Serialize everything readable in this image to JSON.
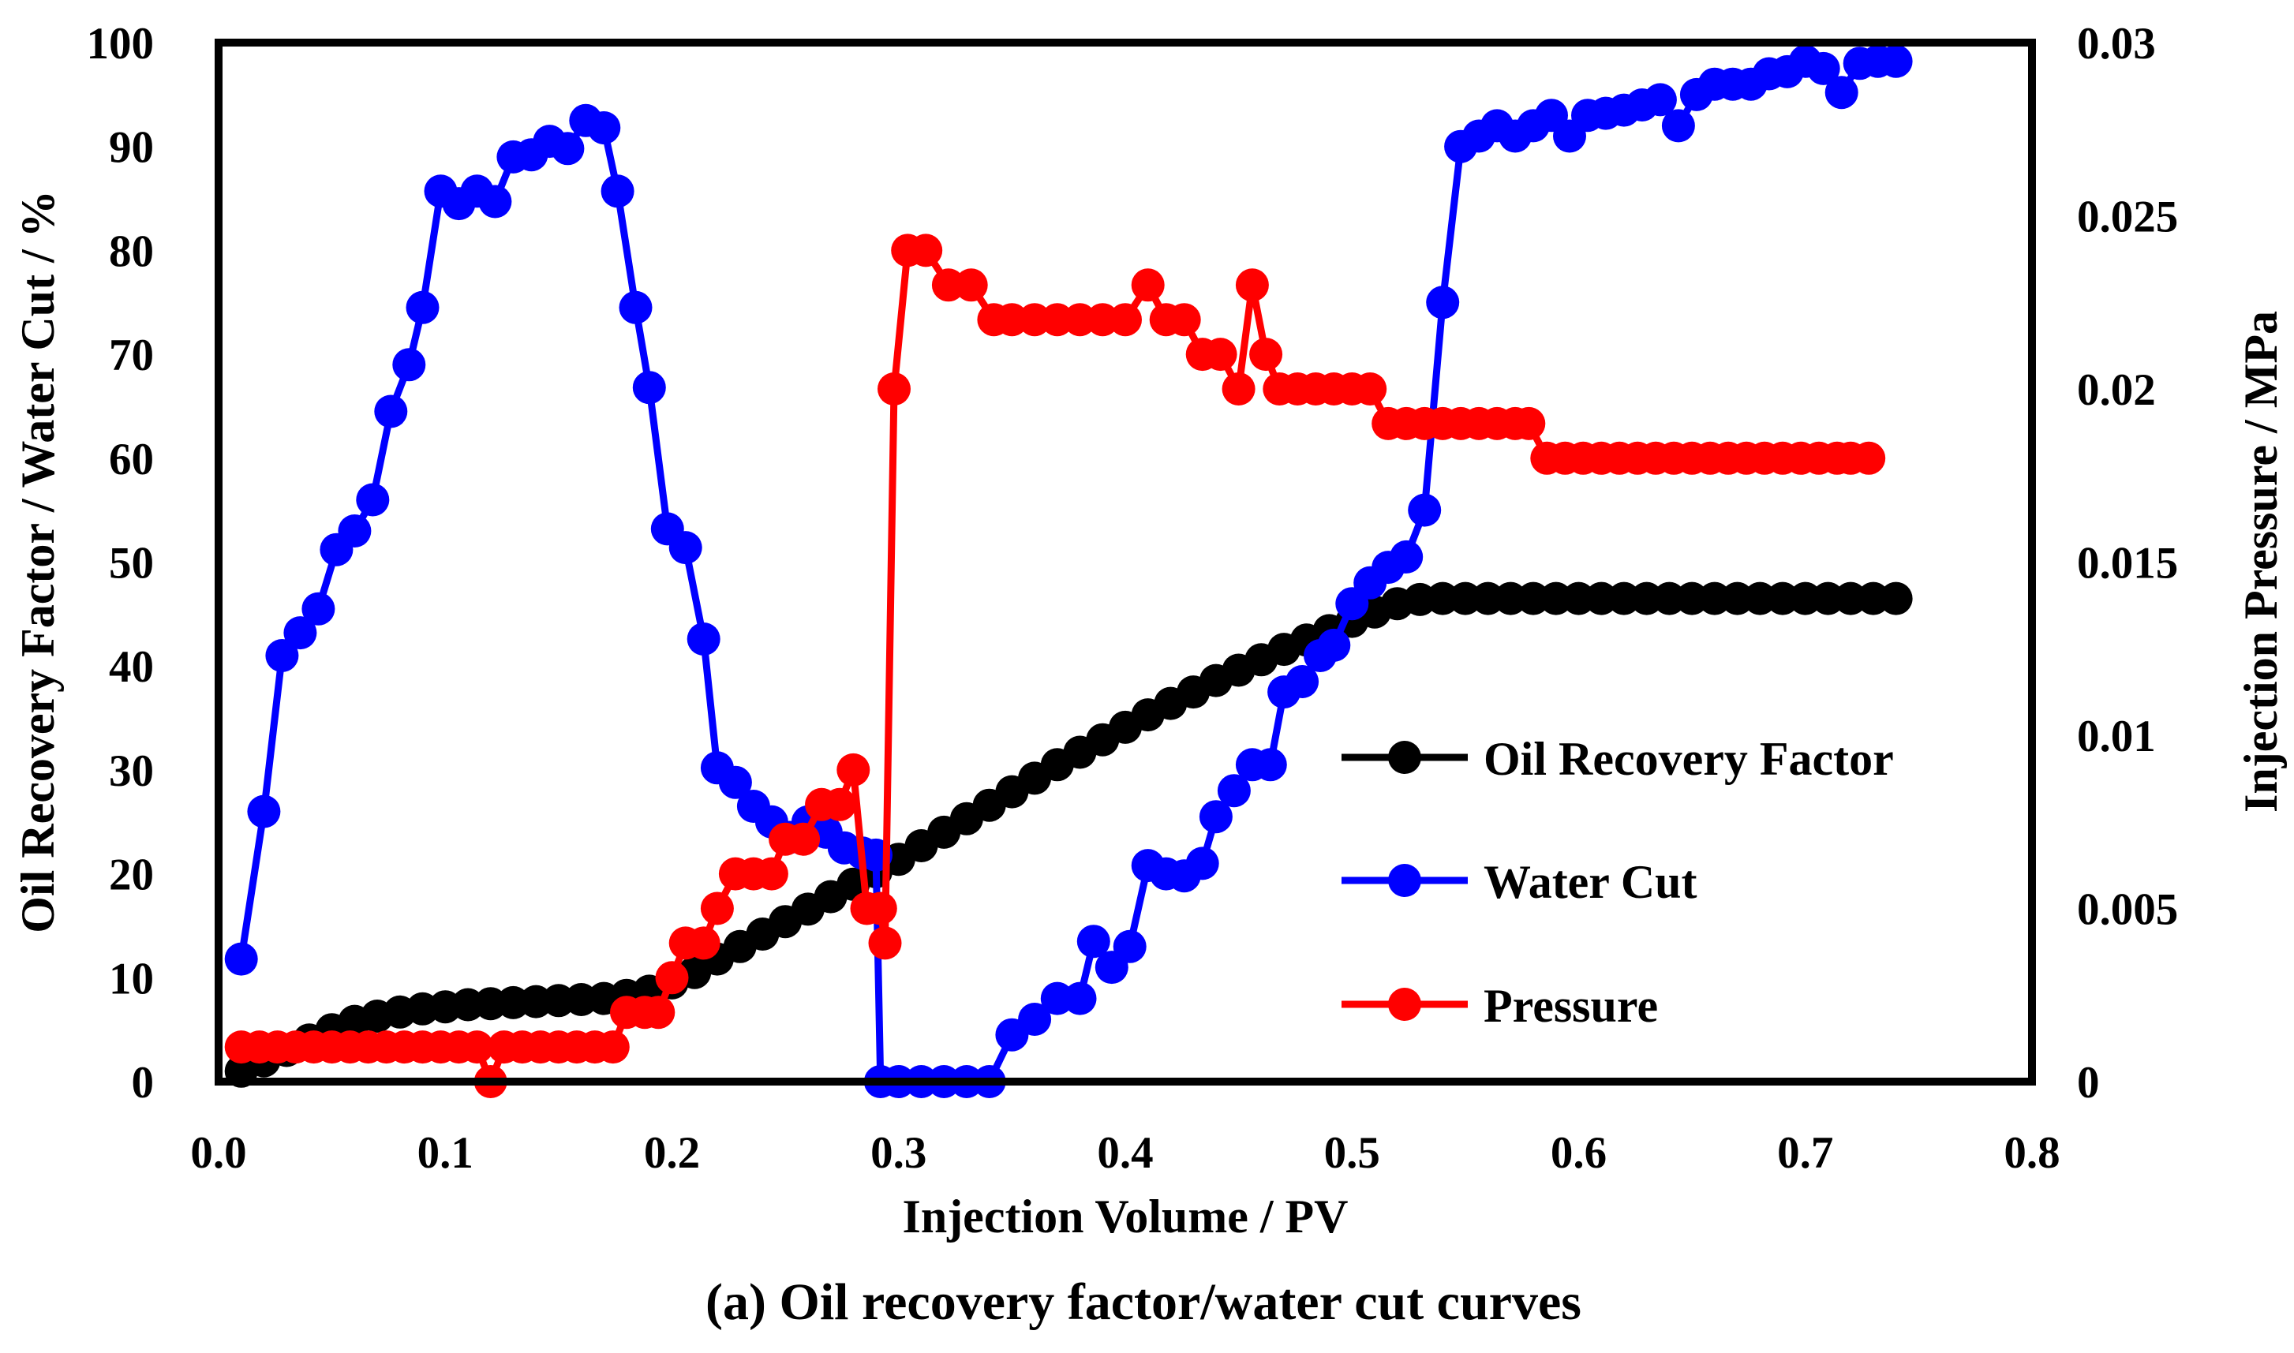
{
  "caption": "(a) Oil recovery factor/water cut curves",
  "chart_data": {
    "type": "line",
    "xlabel": "Injection Volume / PV",
    "ylabel_left": "Oil Recovery Factor / Water Cut / %",
    "ylabel_right": "Injection Pressure / MPa",
    "xlim": [
      0.0,
      0.8
    ],
    "ylim_left": [
      0,
      100
    ],
    "ylim_right": [
      0,
      0.03
    ],
    "x_ticks": [
      "0.0",
      "0.1",
      "0.2",
      "0.3",
      "0.4",
      "0.5",
      "0.6",
      "0.7",
      "0.8"
    ],
    "y_ticks_left": [
      "0",
      "10",
      "20",
      "30",
      "40",
      "50",
      "60",
      "70",
      "80",
      "90",
      "100"
    ],
    "y_ticks_right": [
      "0",
      "0.005",
      "0.01",
      "0.015",
      "0.02",
      "0.025",
      "0.03"
    ],
    "legend_position": "center-right",
    "grid": false,
    "series": [
      {
        "name": "Oil Recovery Factor",
        "axis": "left",
        "color": "#000000",
        "x": [
          0.01,
          0.02,
          0.03,
          0.04,
          0.05,
          0.06,
          0.07,
          0.08,
          0.09,
          0.1,
          0.11,
          0.12,
          0.13,
          0.14,
          0.15,
          0.16,
          0.17,
          0.18,
          0.19,
          0.2,
          0.21,
          0.22,
          0.23,
          0.24,
          0.25,
          0.26,
          0.27,
          0.28,
          0.29,
          0.3,
          0.31,
          0.32,
          0.33,
          0.34,
          0.35,
          0.36,
          0.37,
          0.38,
          0.39,
          0.4,
          0.41,
          0.42,
          0.43,
          0.44,
          0.45,
          0.46,
          0.47,
          0.48,
          0.49,
          0.5,
          0.51,
          0.52,
          0.53,
          0.54,
          0.55,
          0.56,
          0.57,
          0.58,
          0.59,
          0.6,
          0.61,
          0.62,
          0.63,
          0.64,
          0.65,
          0.66,
          0.67,
          0.68,
          0.69,
          0.7,
          0.71,
          0.72,
          0.73,
          0.74
        ],
        "y": [
          1.0,
          2.0,
          3.0,
          4.0,
          5.0,
          5.8,
          6.3,
          6.7,
          7.0,
          7.2,
          7.4,
          7.5,
          7.6,
          7.7,
          7.8,
          7.9,
          8.0,
          8.3,
          8.7,
          9.5,
          10.5,
          11.8,
          13.0,
          14.2,
          15.4,
          16.6,
          17.8,
          19.0,
          20.2,
          21.4,
          22.7,
          24.0,
          25.3,
          26.6,
          27.9,
          29.2,
          30.5,
          31.7,
          32.9,
          34.1,
          35.3,
          36.4,
          37.5,
          38.6,
          39.6,
          40.6,
          41.6,
          42.5,
          43.4,
          44.3,
          45.2,
          46.0,
          46.4,
          46.5,
          46.5,
          46.5,
          46.5,
          46.5,
          46.5,
          46.5,
          46.5,
          46.5,
          46.5,
          46.5,
          46.5,
          46.5,
          46.5,
          46.5,
          46.5,
          46.5,
          46.5,
          46.5,
          46.5,
          46.5
        ]
      },
      {
        "name": "Water Cut",
        "axis": "left",
        "color": "#0000ff",
        "x": [
          0.01,
          0.02,
          0.028,
          0.036,
          0.044,
          0.052,
          0.06,
          0.068,
          0.076,
          0.084,
          0.09,
          0.098,
          0.106,
          0.114,
          0.122,
          0.13,
          0.138,
          0.146,
          0.154,
          0.162,
          0.17,
          0.176,
          0.184,
          0.19,
          0.198,
          0.206,
          0.214,
          0.22,
          0.228,
          0.236,
          0.244,
          0.252,
          0.26,
          0.268,
          0.276,
          0.284,
          0.29,
          0.292,
          0.3,
          0.31,
          0.32,
          0.33,
          0.34,
          0.35,
          0.36,
          0.37,
          0.38,
          0.386,
          0.394,
          0.402,
          0.41,
          0.418,
          0.426,
          0.434,
          0.44,
          0.448,
          0.456,
          0.464,
          0.47,
          0.478,
          0.486,
          0.492,
          0.5,
          0.508,
          0.516,
          0.524,
          0.532,
          0.54,
          0.548,
          0.556,
          0.564,
          0.572,
          0.58,
          0.588,
          0.596,
          0.604,
          0.612,
          0.62,
          0.628,
          0.636,
          0.644,
          0.652,
          0.66,
          0.668,
          0.676,
          0.684,
          0.692,
          0.7,
          0.708,
          0.716,
          0.724,
          0.732,
          0.74
        ],
        "y": [
          11.8,
          26.0,
          41.0,
          43.2,
          45.5,
          51.2,
          53.0,
          56.0,
          64.5,
          69.0,
          74.5,
          85.7,
          84.5,
          85.7,
          84.7,
          89.0,
          89.2,
          90.5,
          89.8,
          92.5,
          91.8,
          85.7,
          74.5,
          66.8,
          53.2,
          51.4,
          42.6,
          30.2,
          28.8,
          26.5,
          25.0,
          23.5,
          25.0,
          24.0,
          22.5,
          22.0,
          21.8,
          0,
          0,
          0,
          0,
          0,
          0,
          4.5,
          6.0,
          8.0,
          8.0,
          13.5,
          11.0,
          13.0,
          20.8,
          20.0,
          19.8,
          21.0,
          25.5,
          28.0,
          30.5,
          30.5,
          37.5,
          38.5,
          41.0,
          42.0,
          46.0,
          48.0,
          49.5,
          50.5,
          55.0,
          75.0,
          90.0,
          91.0,
          92.0,
          91.0,
          92.0,
          93.0,
          91.0,
          93.0,
          93.2,
          93.5,
          94.0,
          94.5,
          92.0,
          95.0,
          96.0,
          96.0,
          96.0,
          97.0,
          97.2,
          98.2,
          97.5,
          95.2,
          98.0,
          98.2,
          98.2
        ]
      },
      {
        "name": "Pressure",
        "axis": "right",
        "color": "#ff0000",
        "x": [
          0.01,
          0.018,
          0.026,
          0.034,
          0.042,
          0.05,
          0.058,
          0.066,
          0.074,
          0.082,
          0.09,
          0.098,
          0.106,
          0.114,
          0.12,
          0.126,
          0.134,
          0.142,
          0.15,
          0.158,
          0.166,
          0.174,
          0.18,
          0.188,
          0.194,
          0.2,
          0.206,
          0.214,
          0.22,
          0.228,
          0.236,
          0.244,
          0.25,
          0.258,
          0.266,
          0.274,
          0.28,
          0.286,
          0.292,
          0.294,
          0.298,
          0.304,
          0.312,
          0.322,
          0.332,
          0.342,
          0.35,
          0.36,
          0.37,
          0.38,
          0.39,
          0.4,
          0.41,
          0.418,
          0.426,
          0.434,
          0.442,
          0.45,
          0.456,
          0.462,
          0.468,
          0.476,
          0.484,
          0.492,
          0.5,
          0.508,
          0.516,
          0.524,
          0.532,
          0.54,
          0.548,
          0.556,
          0.564,
          0.572,
          0.578,
          0.586,
          0.594,
          0.602,
          0.61,
          0.618,
          0.626,
          0.634,
          0.642,
          0.65,
          0.658,
          0.666,
          0.674,
          0.682,
          0.69,
          0.698,
          0.706,
          0.714,
          0.72,
          0.728
        ],
        "y": [
          0.001,
          0.001,
          0.001,
          0.001,
          0.001,
          0.001,
          0.001,
          0.001,
          0.001,
          0.001,
          0.001,
          0.001,
          0.001,
          0.001,
          0.0,
          0.001,
          0.001,
          0.001,
          0.001,
          0.001,
          0.001,
          0.001,
          0.002,
          0.002,
          0.002,
          0.003,
          0.004,
          0.004,
          0.005,
          0.006,
          0.006,
          0.006,
          0.007,
          0.007,
          0.008,
          0.008,
          0.009,
          0.005,
          0.005,
          0.004,
          0.02,
          0.024,
          0.024,
          0.023,
          0.023,
          0.022,
          0.022,
          0.022,
          0.022,
          0.022,
          0.022,
          0.022,
          0.023,
          0.022,
          0.022,
          0.021,
          0.021,
          0.02,
          0.023,
          0.021,
          0.02,
          0.02,
          0.02,
          0.02,
          0.02,
          0.02,
          0.019,
          0.019,
          0.019,
          0.019,
          0.019,
          0.019,
          0.019,
          0.019,
          0.019,
          0.018,
          0.018,
          0.018,
          0.018,
          0.018,
          0.018,
          0.018,
          0.018,
          0.018,
          0.018,
          0.018,
          0.018,
          0.018,
          0.018,
          0.018,
          0.018,
          0.018,
          0.018,
          0.018
        ]
      }
    ]
  }
}
